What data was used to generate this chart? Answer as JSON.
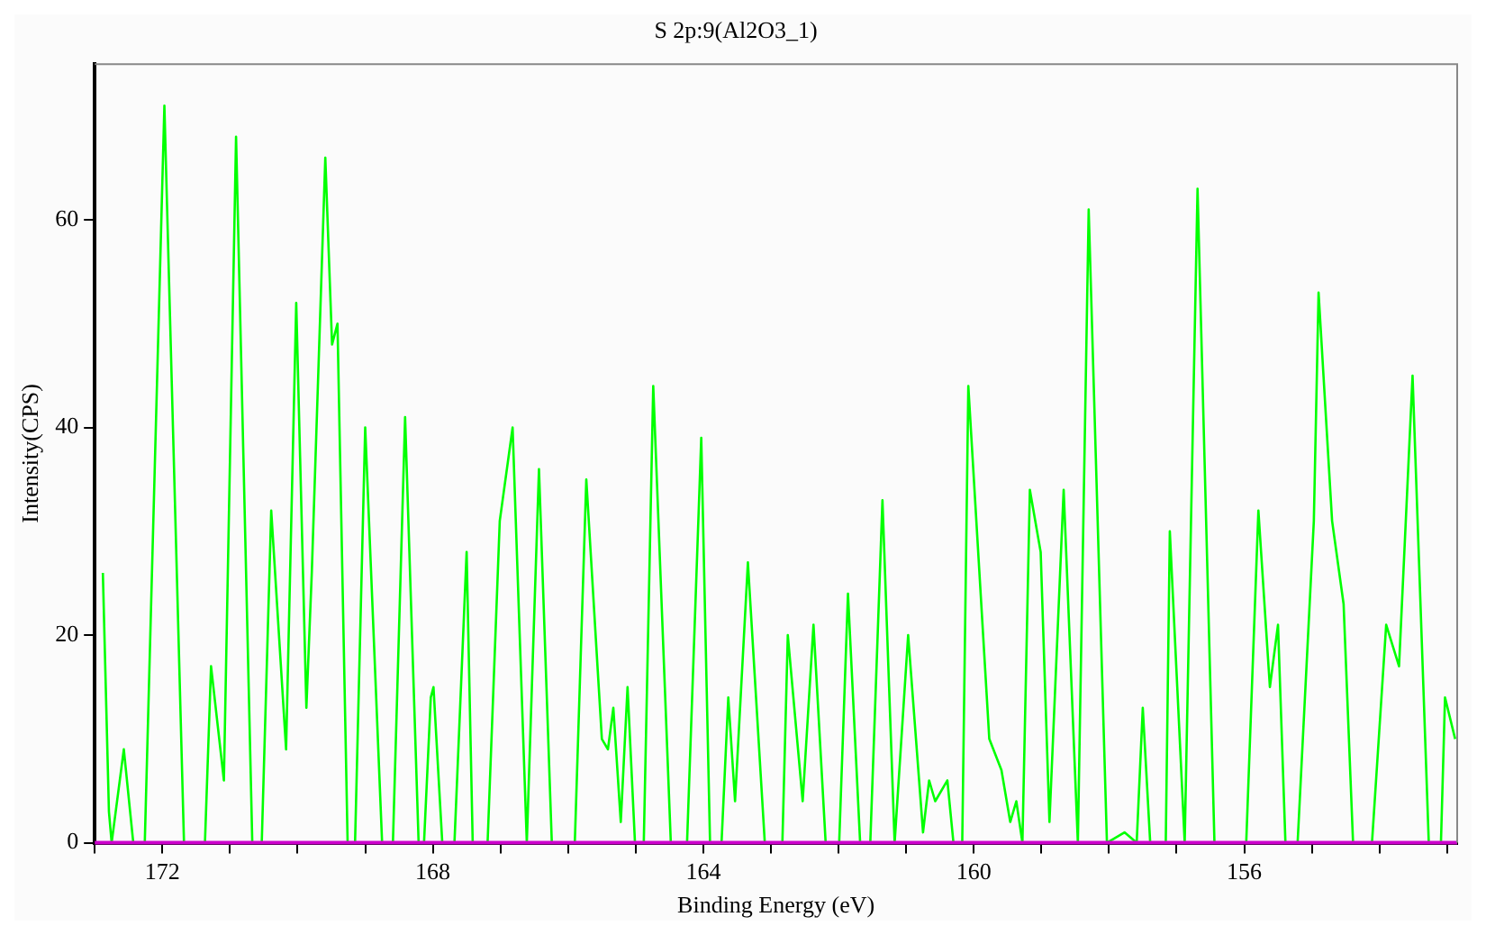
{
  "chart_data": {
    "type": "line",
    "title": "S 2p:9(Al2O3_1)",
    "xlabel": "Binding Energy (eV)",
    "ylabel": "Intensity(CPS)",
    "xlim": [
      173,
      152.85
    ],
    "ylim": [
      0,
      75
    ],
    "xticks": [
      {
        "value": 173,
        "label": null
      },
      172,
      {
        "value": 171,
        "label": null
      },
      {
        "value": 170,
        "label": null
      },
      {
        "value": 169,
        "label": null
      },
      168,
      {
        "value": 167,
        "label": null
      },
      {
        "value": 166,
        "label": null
      },
      {
        "value": 165,
        "label": null
      },
      164,
      {
        "value": 163,
        "label": null
      },
      {
        "value": 162,
        "label": null
      },
      {
        "value": 161,
        "label": null
      },
      160,
      {
        "value": 159,
        "label": null
      },
      {
        "value": 158,
        "label": null
      },
      {
        "value": 157,
        "label": null
      },
      156,
      {
        "value": 155,
        "label": null
      },
      {
        "value": 154,
        "label": null
      },
      {
        "value": 153,
        "label": null
      }
    ],
    "yticks": [
      0,
      20,
      40,
      60
    ],
    "grid": false,
    "legend": false,
    "ref_lines": [
      {
        "axis": "y",
        "value": 0,
        "color": "#cc00cc"
      }
    ],
    "series": [
      {
        "color": "#00ff00",
        "x": [
          172.88,
          172.79,
          172.75,
          172.57,
          172.43,
          172.26,
          171.97,
          171.68,
          171.37,
          171.28,
          171.09,
          170.91,
          170.67,
          170.53,
          170.39,
          170.17,
          170.02,
          169.87,
          169.79,
          169.59,
          169.49,
          169.41,
          169.26,
          169.15,
          169.0,
          168.75,
          168.59,
          168.41,
          168.21,
          168.13,
          168.03,
          167.99,
          167.86,
          167.68,
          167.5,
          167.41,
          167.19,
          167.01,
          166.82,
          166.61,
          166.43,
          166.24,
          165.9,
          165.73,
          165.5,
          165.41,
          165.33,
          165.22,
          165.12,
          165.01,
          164.88,
          164.74,
          164.48,
          164.24,
          164.03,
          163.9,
          163.73,
          163.63,
          163.53,
          163.34,
          163.09,
          162.83,
          162.75,
          162.53,
          162.37,
          162.19,
          161.99,
          161.86,
          161.68,
          161.53,
          161.35,
          161.17,
          160.97,
          160.75,
          160.66,
          160.57,
          160.39,
          160.3,
          160.17,
          160.08,
          159.77,
          159.59,
          159.46,
          159.37,
          159.28,
          159.17,
          159.01,
          158.88,
          158.67,
          158.46,
          158.3,
          158.03,
          157.77,
          157.59,
          157.5,
          157.39,
          157.16,
          157.1,
          156.88,
          156.69,
          156.44,
          155.97,
          155.79,
          155.62,
          155.5,
          155.39,
          155.21,
          154.97,
          154.9,
          154.7,
          154.53,
          154.39,
          154.11,
          153.9,
          153.71,
          153.51,
          153.27,
          153.09,
          153.03,
          152.88
        ],
        "values": [
          26,
          3,
          0,
          9,
          0,
          0,
          71,
          0,
          0,
          17,
          6,
          68,
          0,
          0,
          32,
          9,
          52,
          13,
          26,
          66,
          48,
          50,
          0,
          0,
          40,
          0,
          0,
          41,
          0,
          0,
          14,
          15,
          0,
          0,
          28,
          0,
          0,
          31,
          40,
          0,
          36,
          0,
          0,
          35,
          10,
          9,
          13,
          2,
          15,
          0,
          0,
          44,
          0,
          0,
          39,
          0,
          0,
          14,
          4,
          27,
          0,
          0,
          20,
          4,
          21,
          0,
          0,
          24,
          0,
          0,
          33,
          0,
          20,
          1,
          6,
          4,
          6,
          0,
          0,
          44,
          10,
          7,
          2,
          4,
          0,
          34,
          28,
          2,
          34,
          0,
          61,
          0,
          1,
          0,
          13,
          0,
          0,
          30,
          0,
          63,
          0,
          0,
          32,
          15,
          21,
          0,
          0,
          31,
          53,
          31,
          23,
          0,
          0,
          21,
          17,
          45,
          0,
          0,
          14,
          10
        ]
      }
    ]
  }
}
